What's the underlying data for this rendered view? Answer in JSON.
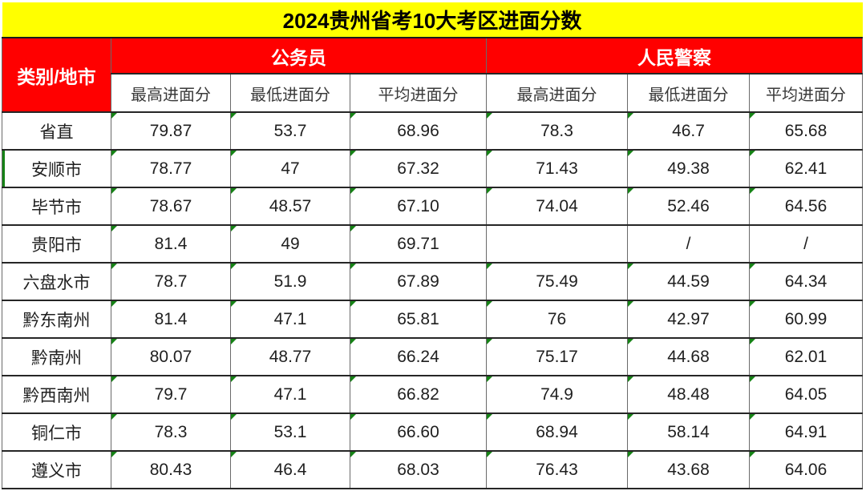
{
  "title": "2024贵州省考10大考区进面分数",
  "table": {
    "corner_header": "类别/地市",
    "groups": [
      {
        "label": "公务员"
      },
      {
        "label": "人民警察"
      }
    ],
    "subheaders": [
      "最高进面分",
      "最低进面分",
      "平均进面分"
    ],
    "rows": [
      {
        "region": "省直",
        "values": [
          "79.87",
          "53.7",
          "68.96",
          "78.3",
          "46.7",
          "65.68"
        ]
      },
      {
        "region": "安顺市",
        "values": [
          "78.77",
          "47",
          "67.32",
          "71.43",
          "49.38",
          "62.41"
        ],
        "green_left_marker": true
      },
      {
        "region": "毕节市",
        "values": [
          "78.67",
          "48.57",
          "67.10",
          "74.04",
          "52.46",
          "64.56"
        ]
      },
      {
        "region": "贵阳市",
        "values": [
          "81.4",
          "49",
          "69.71",
          "",
          "/",
          "/"
        ]
      },
      {
        "region": "六盘水市",
        "values": [
          "78.7",
          "51.9",
          "67.89",
          "75.49",
          "44.59",
          "64.34"
        ]
      },
      {
        "region": "黔东南州",
        "values": [
          "81.4",
          "47.1",
          "65.81",
          "76",
          "42.97",
          "60.99"
        ]
      },
      {
        "region": "黔南州",
        "values": [
          "80.07",
          "48.77",
          "66.24",
          "75.17",
          "44.68",
          "62.01"
        ]
      },
      {
        "region": "黔西南州",
        "values": [
          "79.7",
          "47.1",
          "66.82",
          "74.9",
          "48.48",
          "64.05"
        ]
      },
      {
        "region": "铜仁市",
        "values": [
          "78.3",
          "53.1",
          "66.60",
          "68.94",
          "58.14",
          "64.91"
        ]
      },
      {
        "region": "遵义市",
        "values": [
          "80.43",
          "46.4",
          "68.03",
          "76.43",
          "43.68",
          "64.06"
        ]
      }
    ]
  },
  "colors": {
    "title_bg": "#FFFF00",
    "group_header_bg": "#FF0000",
    "group_header_text": "#FFFFFF",
    "flag_green": "#168316"
  },
  "chart_data": {
    "type": "table",
    "title": "2024贵州省考10大考区进面分数",
    "column_groups": [
      "公务员",
      "人民警察"
    ],
    "columns": [
      "类别/地市",
      "公务员-最高进面分",
      "公务员-最低进面分",
      "公务员-平均进面分",
      "人民警察-最高进面分",
      "人民警察-最低进面分",
      "人民警察-平均进面分"
    ],
    "rows": [
      [
        "省直",
        79.87,
        53.7,
        68.96,
        78.3,
        46.7,
        65.68
      ],
      [
        "安顺市",
        78.77,
        47,
        67.32,
        71.43,
        49.38,
        62.41
      ],
      [
        "毕节市",
        78.67,
        48.57,
        67.1,
        74.04,
        52.46,
        64.56
      ],
      [
        "贵阳市",
        81.4,
        49,
        69.71,
        null,
        "/",
        "/"
      ],
      [
        "六盘水市",
        78.7,
        51.9,
        67.89,
        75.49,
        44.59,
        64.34
      ],
      [
        "黔东南州",
        81.4,
        47.1,
        65.81,
        76,
        42.97,
        60.99
      ],
      [
        "黔南州",
        80.07,
        48.77,
        66.24,
        75.17,
        44.68,
        62.01
      ],
      [
        "黔西南州",
        79.7,
        47.1,
        66.82,
        74.9,
        48.48,
        64.05
      ],
      [
        "铜仁市",
        78.3,
        53.1,
        66.6,
        68.94,
        58.14,
        64.91
      ],
      [
        "遵义市",
        80.43,
        46.4,
        68.03,
        76.43,
        43.68,
        64.06
      ]
    ]
  }
}
